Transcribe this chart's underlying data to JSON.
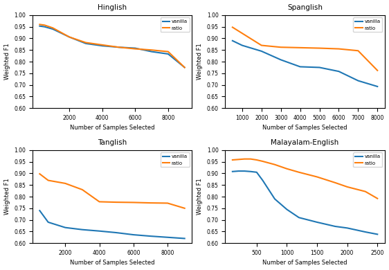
{
  "hinglish": {
    "title": "Hinglish",
    "x": [
      200,
      500,
      1000,
      2000,
      3000,
      4000,
      5000,
      6000,
      7000,
      8000,
      9000
    ],
    "vanilla": [
      0.953,
      0.95,
      0.94,
      0.906,
      0.878,
      0.868,
      0.862,
      0.858,
      0.843,
      0.833,
      0.775
    ],
    "ratio": [
      0.96,
      0.957,
      0.945,
      0.906,
      0.882,
      0.872,
      0.862,
      0.855,
      0.85,
      0.843,
      0.775
    ],
    "ylim": [
      0.6,
      1.0
    ],
    "xticks": [
      2000,
      4000,
      6000,
      8000
    ]
  },
  "spanglish": {
    "title": "Spanglish",
    "x": [
      500,
      1000,
      2000,
      3000,
      4000,
      5000,
      6000,
      7000,
      8000
    ],
    "vanilla": [
      0.89,
      0.87,
      0.845,
      0.808,
      0.778,
      0.775,
      0.758,
      0.718,
      0.693
    ],
    "ratio": [
      0.948,
      0.922,
      0.87,
      0.862,
      0.86,
      0.858,
      0.855,
      0.847,
      0.762
    ],
    "ylim": [
      0.6,
      1.0
    ],
    "xticks": [
      1000,
      2000,
      3000,
      4000,
      5000,
      6000,
      7000,
      8000
    ]
  },
  "tanglish": {
    "title": "Tanglish",
    "x": [
      500,
      1000,
      2000,
      3000,
      4000,
      5000,
      6000,
      7000,
      8000,
      9000
    ],
    "vanilla": [
      0.74,
      0.69,
      0.667,
      0.658,
      0.652,
      0.645,
      0.636,
      0.63,
      0.625,
      0.62
    ],
    "ratio": [
      0.898,
      0.87,
      0.857,
      0.83,
      0.778,
      0.776,
      0.775,
      0.773,
      0.772,
      0.75
    ],
    "ylim": [
      0.6,
      1.0
    ],
    "xticks": [
      2000,
      4000,
      6000,
      8000
    ]
  },
  "malayalam": {
    "title": "Malayalam-English",
    "x": [
      100,
      200,
      300,
      400,
      500,
      600,
      700,
      800,
      1000,
      1200,
      1500,
      1800,
      2000,
      2300,
      2500
    ],
    "vanilla": [
      0.908,
      0.91,
      0.91,
      0.908,
      0.905,
      0.87,
      0.83,
      0.79,
      0.745,
      0.71,
      0.69,
      0.672,
      0.665,
      0.648,
      0.638
    ],
    "ratio": [
      0.958,
      0.96,
      0.962,
      0.962,
      0.958,
      0.952,
      0.945,
      0.938,
      0.92,
      0.905,
      0.885,
      0.86,
      0.842,
      0.822,
      0.792
    ],
    "ylim": [
      0.6,
      1.0
    ],
    "xticks": [
      500,
      1000,
      1500,
      2000,
      2500
    ]
  },
  "vanilla_color": "#1f77b4",
  "ratio_color": "#ff7f0e",
  "vanilla_label": "vanilla",
  "ratio_label": "ratio",
  "xlabel": "Number of Samples Selected",
  "ylabel": "Weighted F1",
  "linewidth": 1.5
}
